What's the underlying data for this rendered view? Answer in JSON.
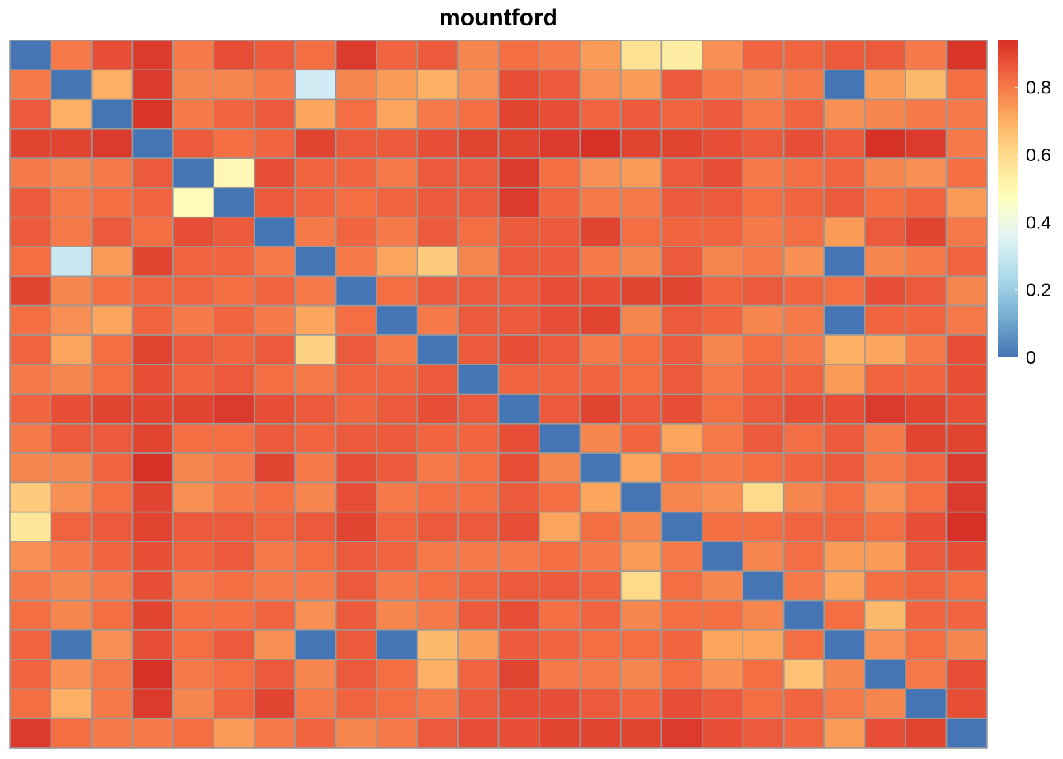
{
  "chart_data": {
    "type": "heatmap",
    "title": "mountford",
    "xlabel": "",
    "ylabel": "",
    "rows": 24,
    "cols": 24,
    "values": [
      [
        0.0,
        0.8,
        0.88,
        0.92,
        0.8,
        0.88,
        0.86,
        0.82,
        0.92,
        0.84,
        0.86,
        0.78,
        0.82,
        0.8,
        0.74,
        0.58,
        0.54,
        0.76,
        0.84,
        0.84,
        0.86,
        0.86,
        0.8,
        0.93
      ],
      [
        0.8,
        0.0,
        0.7,
        0.92,
        0.78,
        0.78,
        0.8,
        0.32,
        0.78,
        0.74,
        0.7,
        0.76,
        0.88,
        0.86,
        0.76,
        0.74,
        0.86,
        0.8,
        0.78,
        0.8,
        0.0,
        0.74,
        0.68,
        0.82
      ],
      [
        0.86,
        0.7,
        0.0,
        0.93,
        0.8,
        0.84,
        0.86,
        0.72,
        0.82,
        0.72,
        0.8,
        0.82,
        0.9,
        0.88,
        0.84,
        0.86,
        0.84,
        0.86,
        0.8,
        0.84,
        0.76,
        0.78,
        0.8,
        0.8
      ],
      [
        0.9,
        0.9,
        0.92,
        0.0,
        0.86,
        0.82,
        0.84,
        0.9,
        0.86,
        0.86,
        0.88,
        0.9,
        0.9,
        0.92,
        0.94,
        0.9,
        0.9,
        0.88,
        0.86,
        0.88,
        0.86,
        0.94,
        0.92,
        0.8
      ],
      [
        0.8,
        0.78,
        0.8,
        0.86,
        0.0,
        0.5,
        0.88,
        0.84,
        0.84,
        0.8,
        0.86,
        0.86,
        0.92,
        0.82,
        0.76,
        0.74,
        0.86,
        0.88,
        0.8,
        0.82,
        0.84,
        0.78,
        0.76,
        0.82
      ],
      [
        0.86,
        0.8,
        0.82,
        0.84,
        0.48,
        0.0,
        0.86,
        0.84,
        0.82,
        0.84,
        0.86,
        0.86,
        0.92,
        0.84,
        0.8,
        0.8,
        0.86,
        0.86,
        0.82,
        0.84,
        0.86,
        0.82,
        0.84,
        0.74
      ],
      [
        0.86,
        0.8,
        0.86,
        0.82,
        0.88,
        0.86,
        0.0,
        0.8,
        0.84,
        0.8,
        0.86,
        0.82,
        0.86,
        0.86,
        0.9,
        0.82,
        0.84,
        0.84,
        0.8,
        0.82,
        0.74,
        0.86,
        0.9,
        0.8
      ],
      [
        0.82,
        0.3,
        0.74,
        0.9,
        0.84,
        0.84,
        0.8,
        0.0,
        0.8,
        0.72,
        0.64,
        0.78,
        0.86,
        0.86,
        0.8,
        0.78,
        0.86,
        0.78,
        0.8,
        0.76,
        0.0,
        0.78,
        0.8,
        0.84
      ],
      [
        0.9,
        0.78,
        0.82,
        0.84,
        0.84,
        0.82,
        0.84,
        0.8,
        0.0,
        0.82,
        0.86,
        0.86,
        0.86,
        0.88,
        0.88,
        0.9,
        0.9,
        0.84,
        0.86,
        0.84,
        0.82,
        0.88,
        0.86,
        0.78
      ],
      [
        0.82,
        0.76,
        0.72,
        0.84,
        0.8,
        0.84,
        0.8,
        0.72,
        0.82,
        0.0,
        0.8,
        0.86,
        0.86,
        0.88,
        0.9,
        0.78,
        0.86,
        0.84,
        0.78,
        0.8,
        0.0,
        0.84,
        0.84,
        0.8
      ],
      [
        0.84,
        0.72,
        0.82,
        0.9,
        0.86,
        0.84,
        0.86,
        0.62,
        0.86,
        0.8,
        0.0,
        0.86,
        0.88,
        0.86,
        0.8,
        0.82,
        0.86,
        0.78,
        0.82,
        0.8,
        0.7,
        0.72,
        0.8,
        0.88
      ],
      [
        0.8,
        0.78,
        0.82,
        0.88,
        0.84,
        0.86,
        0.82,
        0.8,
        0.84,
        0.84,
        0.86,
        0.0,
        0.84,
        0.84,
        0.84,
        0.82,
        0.86,
        0.8,
        0.84,
        0.84,
        0.74,
        0.84,
        0.84,
        0.88
      ],
      [
        0.84,
        0.88,
        0.9,
        0.9,
        0.9,
        0.92,
        0.88,
        0.86,
        0.84,
        0.86,
        0.88,
        0.86,
        0.0,
        0.86,
        0.9,
        0.86,
        0.88,
        0.82,
        0.86,
        0.88,
        0.88,
        0.92,
        0.9,
        0.88
      ],
      [
        0.8,
        0.86,
        0.86,
        0.9,
        0.82,
        0.82,
        0.86,
        0.84,
        0.86,
        0.86,
        0.84,
        0.84,
        0.88,
        0.0,
        0.78,
        0.84,
        0.72,
        0.8,
        0.86,
        0.82,
        0.86,
        0.8,
        0.9,
        0.9
      ],
      [
        0.78,
        0.78,
        0.84,
        0.94,
        0.78,
        0.8,
        0.9,
        0.8,
        0.88,
        0.86,
        0.8,
        0.82,
        0.88,
        0.78,
        0.0,
        0.72,
        0.82,
        0.8,
        0.82,
        0.84,
        0.86,
        0.8,
        0.84,
        0.92
      ],
      [
        0.64,
        0.76,
        0.82,
        0.9,
        0.76,
        0.8,
        0.82,
        0.78,
        0.88,
        0.8,
        0.82,
        0.82,
        0.86,
        0.82,
        0.72,
        0.0,
        0.78,
        0.76,
        0.6,
        0.78,
        0.82,
        0.76,
        0.82,
        0.92
      ],
      [
        0.56,
        0.84,
        0.86,
        0.9,
        0.86,
        0.86,
        0.84,
        0.86,
        0.9,
        0.84,
        0.86,
        0.86,
        0.88,
        0.72,
        0.82,
        0.78,
        0.0,
        0.82,
        0.82,
        0.84,
        0.84,
        0.82,
        0.88,
        0.94
      ],
      [
        0.76,
        0.8,
        0.84,
        0.88,
        0.84,
        0.86,
        0.8,
        0.82,
        0.86,
        0.84,
        0.8,
        0.8,
        0.8,
        0.82,
        0.8,
        0.74,
        0.8,
        0.0,
        0.78,
        0.82,
        0.74,
        0.74,
        0.86,
        0.88
      ],
      [
        0.8,
        0.78,
        0.8,
        0.88,
        0.8,
        0.82,
        0.8,
        0.8,
        0.86,
        0.8,
        0.82,
        0.84,
        0.86,
        0.86,
        0.84,
        0.6,
        0.82,
        0.78,
        0.0,
        0.8,
        0.72,
        0.82,
        0.84,
        0.82
      ],
      [
        0.82,
        0.78,
        0.82,
        0.9,
        0.82,
        0.82,
        0.84,
        0.76,
        0.86,
        0.78,
        0.8,
        0.86,
        0.88,
        0.82,
        0.84,
        0.78,
        0.82,
        0.82,
        0.78,
        0.0,
        0.82,
        0.68,
        0.84,
        0.84
      ],
      [
        0.84,
        0.0,
        0.76,
        0.88,
        0.82,
        0.86,
        0.76,
        0.0,
        0.86,
        0.0,
        0.68,
        0.74,
        0.86,
        0.84,
        0.82,
        0.82,
        0.84,
        0.72,
        0.72,
        0.82,
        0.0,
        0.76,
        0.82,
        0.78
      ],
      [
        0.84,
        0.76,
        0.8,
        0.94,
        0.8,
        0.82,
        0.86,
        0.78,
        0.86,
        0.82,
        0.7,
        0.84,
        0.9,
        0.8,
        0.8,
        0.78,
        0.82,
        0.76,
        0.82,
        0.66,
        0.78,
        0.0,
        0.8,
        0.88
      ],
      [
        0.82,
        0.7,
        0.8,
        0.92,
        0.78,
        0.84,
        0.9,
        0.8,
        0.84,
        0.82,
        0.8,
        0.86,
        0.88,
        0.88,
        0.86,
        0.84,
        0.88,
        0.86,
        0.82,
        0.84,
        0.8,
        0.78,
        0.0,
        0.88
      ],
      [
        0.92,
        0.82,
        0.8,
        0.8,
        0.82,
        0.74,
        0.8,
        0.84,
        0.78,
        0.8,
        0.86,
        0.88,
        0.88,
        0.9,
        0.9,
        0.9,
        0.92,
        0.88,
        0.86,
        0.84,
        0.74,
        0.88,
        0.9,
        0.0
      ]
    ],
    "zlim": [
      0,
      0.94
    ],
    "colorbar_ticks": [
      0,
      0.2,
      0.4,
      0.6,
      0.8
    ],
    "colorbar_tick_labels": [
      "0",
      "0.2",
      "0.4",
      "0.6",
      "0.8"
    ],
    "palette": [
      "#4575B4",
      "#74ADD1",
      "#ABD9E9",
      "#E0F3F8",
      "#FFFFBF",
      "#FEE090",
      "#FDAE61",
      "#F46D43",
      "#D73027"
    ],
    "grid": true,
    "legend_placement": "right"
  }
}
